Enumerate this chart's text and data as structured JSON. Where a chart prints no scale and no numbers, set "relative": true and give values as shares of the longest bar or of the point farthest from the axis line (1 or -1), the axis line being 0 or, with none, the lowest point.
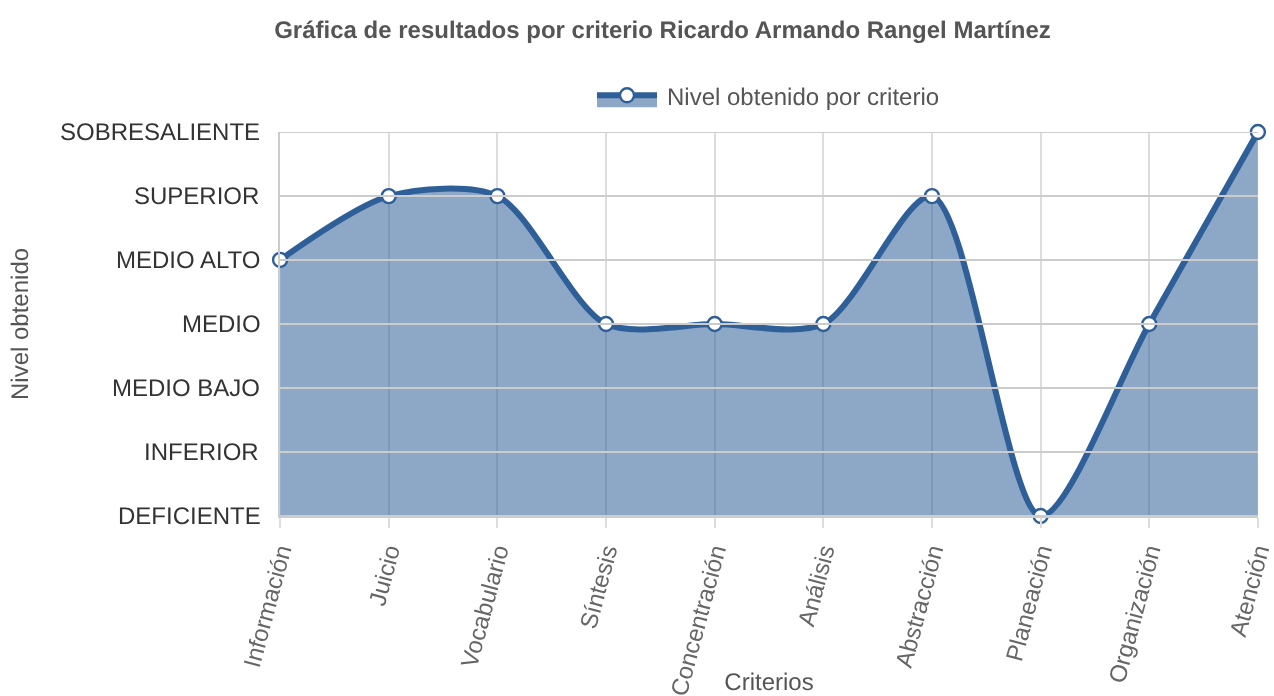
{
  "chart_data": {
    "type": "area",
    "title": "Gráfica de resultados por criterio Ricardo Armando Rangel Martínez",
    "xlabel": "Criterios",
    "annotations": [
      "Nivel obtenido"
    ],
    "categories": [
      "Información",
      "Juicio",
      "Vocabulario",
      "Síntesis",
      "Concentración",
      "Análisis",
      "Abstracción",
      "Planeación",
      "Organización",
      "Atención"
    ],
    "series": [
      {
        "name": "Nivel obtenido por criterio",
        "color": "#2f5f98",
        "values": [
          0.667,
          0.833,
          0.833,
          0.5,
          0.5,
          0.5,
          0.833,
          0,
          0.5,
          1
        ]
      }
    ],
    "relative": true,
    "ref_lines": [
      {
        "axis": "y",
        "value": 0,
        "label": "DEFICIENTE"
      },
      {
        "axis": "y",
        "value": 0.167,
        "label": "INFERIOR"
      },
      {
        "axis": "y",
        "value": 0.333,
        "label": "MEDIO BAJO"
      },
      {
        "axis": "y",
        "value": 0.5,
        "label": "MEDIO"
      },
      {
        "axis": "y",
        "value": 0.667,
        "label": "MEDIO ALTO"
      },
      {
        "axis": "y",
        "value": 0.833,
        "label": "SUPERIOR"
      },
      {
        "axis": "y",
        "value": 1,
        "label": "SOBRESALIENTE"
      }
    ],
    "grid": "x",
    "legend": "top",
    "marker": "circle",
    "line_style": "solid"
  }
}
